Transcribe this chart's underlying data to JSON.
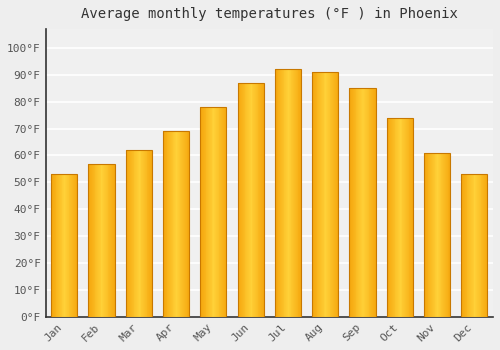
{
  "title": "Average monthly temperatures (°F ) in Phoenix",
  "months": [
    "Jan",
    "Feb",
    "Mar",
    "Apr",
    "May",
    "Jun",
    "Jul",
    "Aug",
    "Sep",
    "Oct",
    "Nov",
    "Dec"
  ],
  "temperatures": [
    53,
    57,
    62,
    69,
    78,
    87,
    92,
    91,
    85,
    74,
    61,
    53
  ],
  "bar_color_center": "#FFD055",
  "bar_color_edge": "#F5A800",
  "bar_edge_color": "#C87800",
  "yticks": [
    0,
    10,
    20,
    30,
    40,
    50,
    60,
    70,
    80,
    90,
    100
  ],
  "ylim": [
    0,
    107
  ],
  "background_color": "#eeeeee",
  "plot_bg_color": "#f0f0f0",
  "grid_color": "#ffffff",
  "title_fontsize": 10,
  "tick_fontsize": 8,
  "font_family": "monospace",
  "tick_color": "#555555",
  "title_color": "#333333",
  "spine_color": "#333333"
}
